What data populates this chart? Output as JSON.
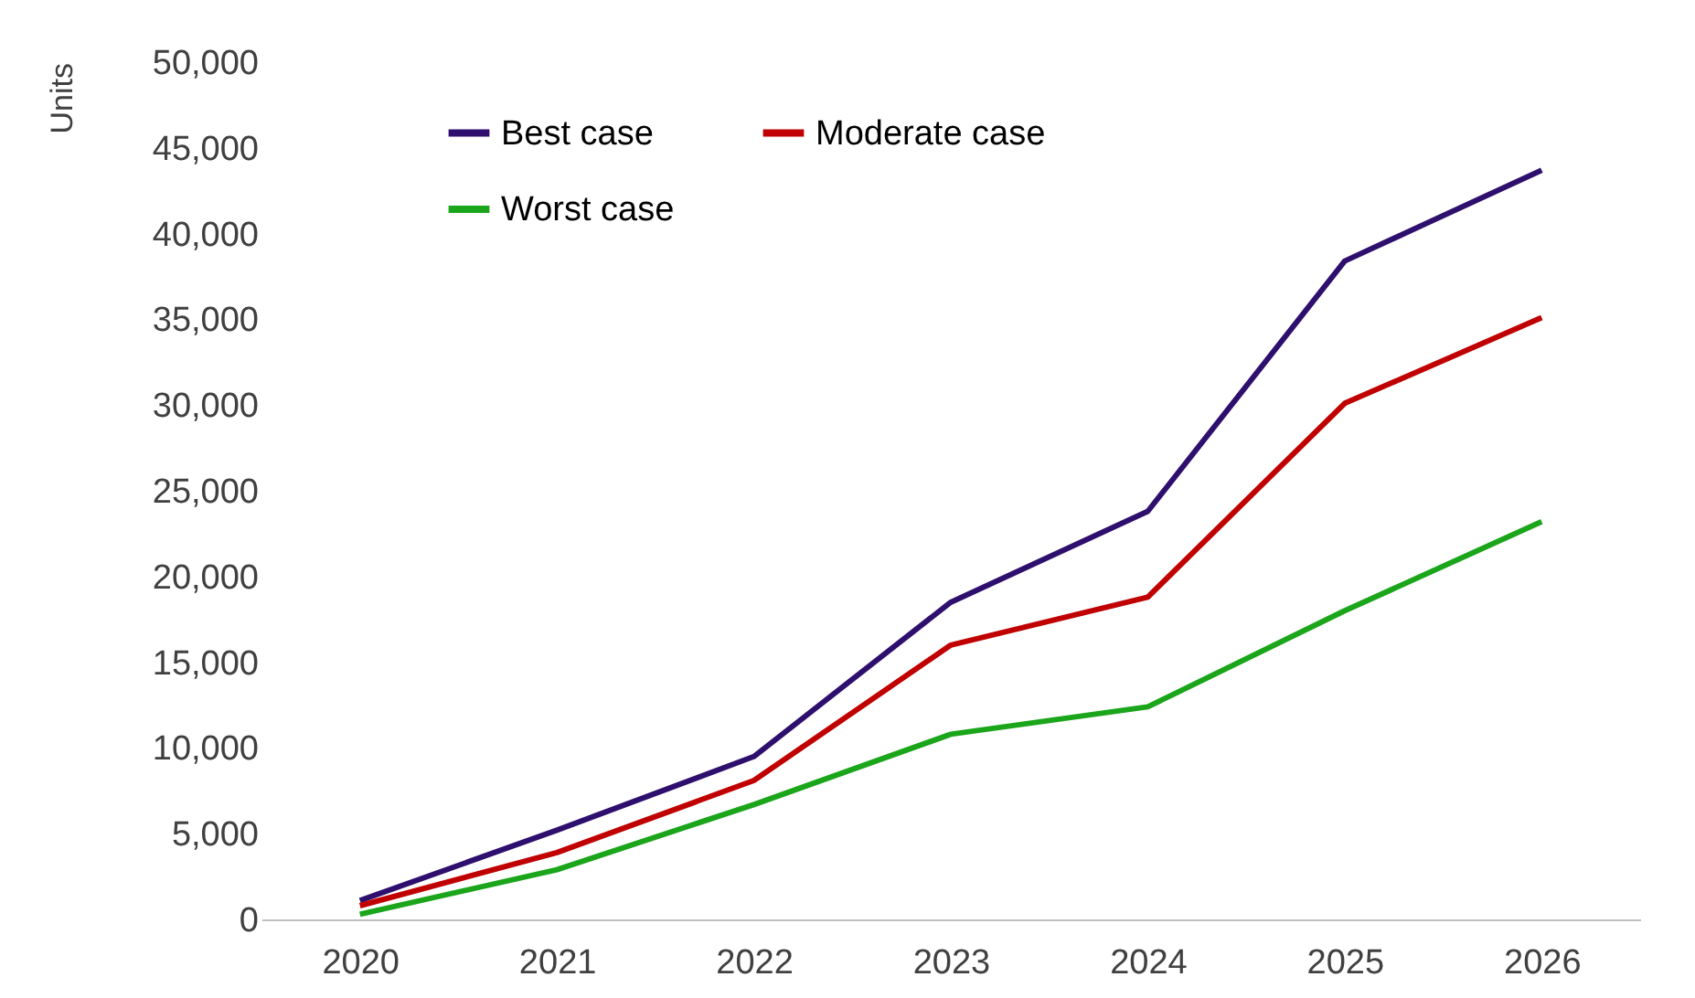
{
  "chart_data": {
    "type": "line",
    "ylabel": "Units",
    "categories": [
      "2020",
      "2021",
      "2022",
      "2023",
      "2024",
      "2025",
      "2026"
    ],
    "series": [
      {
        "name": "Best case",
        "color": "#2e0f6e",
        "values": [
          1100,
          5200,
          9500,
          18500,
          23800,
          38400,
          43700
        ]
      },
      {
        "name": "Moderate case",
        "color": "#c00000",
        "values": [
          800,
          3900,
          8100,
          16000,
          18800,
          30100,
          35100
        ]
      },
      {
        "name": "Worst case",
        "color": "#1aa51a",
        "values": [
          300,
          2900,
          6700,
          10800,
          12400,
          18000,
          23200
        ]
      }
    ],
    "ylim": [
      0,
      50000
    ],
    "yticks": [
      0,
      {
        "value": 5000,
        "label": "5,000"
      },
      {
        "value": 10000,
        "label": "10,000"
      },
      {
        "value": 15000,
        "label": "15,000"
      },
      {
        "value": 20000,
        "label": "20,000"
      },
      {
        "value": 25000,
        "label": "25,000"
      },
      {
        "value": 30000,
        "label": "30,000"
      },
      {
        "value": 35000,
        "label": "35,000"
      },
      {
        "value": 40000,
        "label": "40,000"
      },
      {
        "value": 45000,
        "label": "45,000"
      },
      {
        "value": 50000,
        "label": "50,000"
      }
    ],
    "grid": false,
    "legend": "top left",
    "marker": "none",
    "line_style": "solid"
  }
}
